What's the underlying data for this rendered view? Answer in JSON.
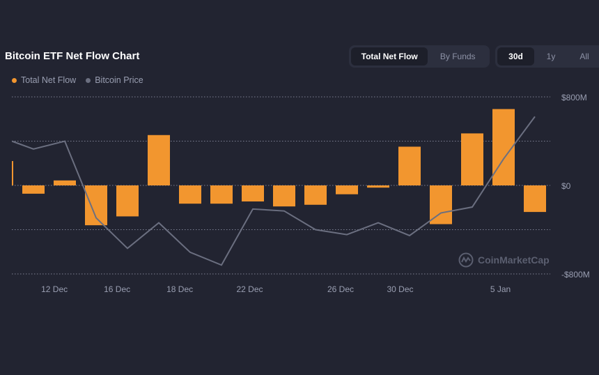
{
  "header": {
    "title": "Bitcoin ETF Net Flow Chart"
  },
  "view_toggle": {
    "options": [
      "Total Net Flow",
      "By Funds"
    ],
    "selected": "Total Net Flow"
  },
  "range_toggle": {
    "options": [
      "30d",
      "1y",
      "All"
    ],
    "selected": "30d"
  },
  "watermark": "CoinMarketCap",
  "colors": {
    "background": "#222431",
    "net_flow": "#f2962f",
    "price": "#6b6f80"
  },
  "chart_data": {
    "type": "bar+line",
    "legend": {
      "placement": "top-left",
      "entries": [
        "Total Net Flow",
        "Bitcoin Price"
      ]
    },
    "grid": true,
    "y_axis": {
      "position": "right",
      "ylim": [
        -800,
        800
      ],
      "unit": "$M",
      "tick_labels": [
        "$800M",
        "$0",
        "-$800M"
      ],
      "tick_values": [
        800,
        0,
        -800
      ]
    },
    "x_tick_labels": [
      {
        "label": "12 Dec",
        "index": 1.67
      },
      {
        "label": "16 Dec",
        "index": 3.67
      },
      {
        "label": "18 Dec",
        "index": 5.67
      },
      {
        "label": "22 Dec",
        "index": 7.9
      },
      {
        "label": "26 Dec",
        "index": 10.8
      },
      {
        "label": "30 Dec",
        "index": 12.7
      },
      {
        "label": "5 Jan",
        "index": 15.9
      }
    ],
    "series": [
      {
        "name": "Total Net Flow",
        "type": "bar",
        "values": [
          220,
          -75,
          45,
          -360,
          -280,
          455,
          -165,
          -165,
          -145,
          -190,
          -175,
          -80,
          -20,
          350,
          -350,
          470,
          690,
          -240
        ]
      },
      {
        "name": "Bitcoin Price",
        "type": "line",
        "values": [
          103500,
          102700,
          103500,
          95700,
          92600,
          95200,
          92200,
          90900,
          96600,
          96400,
          94500,
          94000,
          95200,
          93900,
          96200,
          96800,
          101700,
          106000
        ]
      }
    ]
  }
}
